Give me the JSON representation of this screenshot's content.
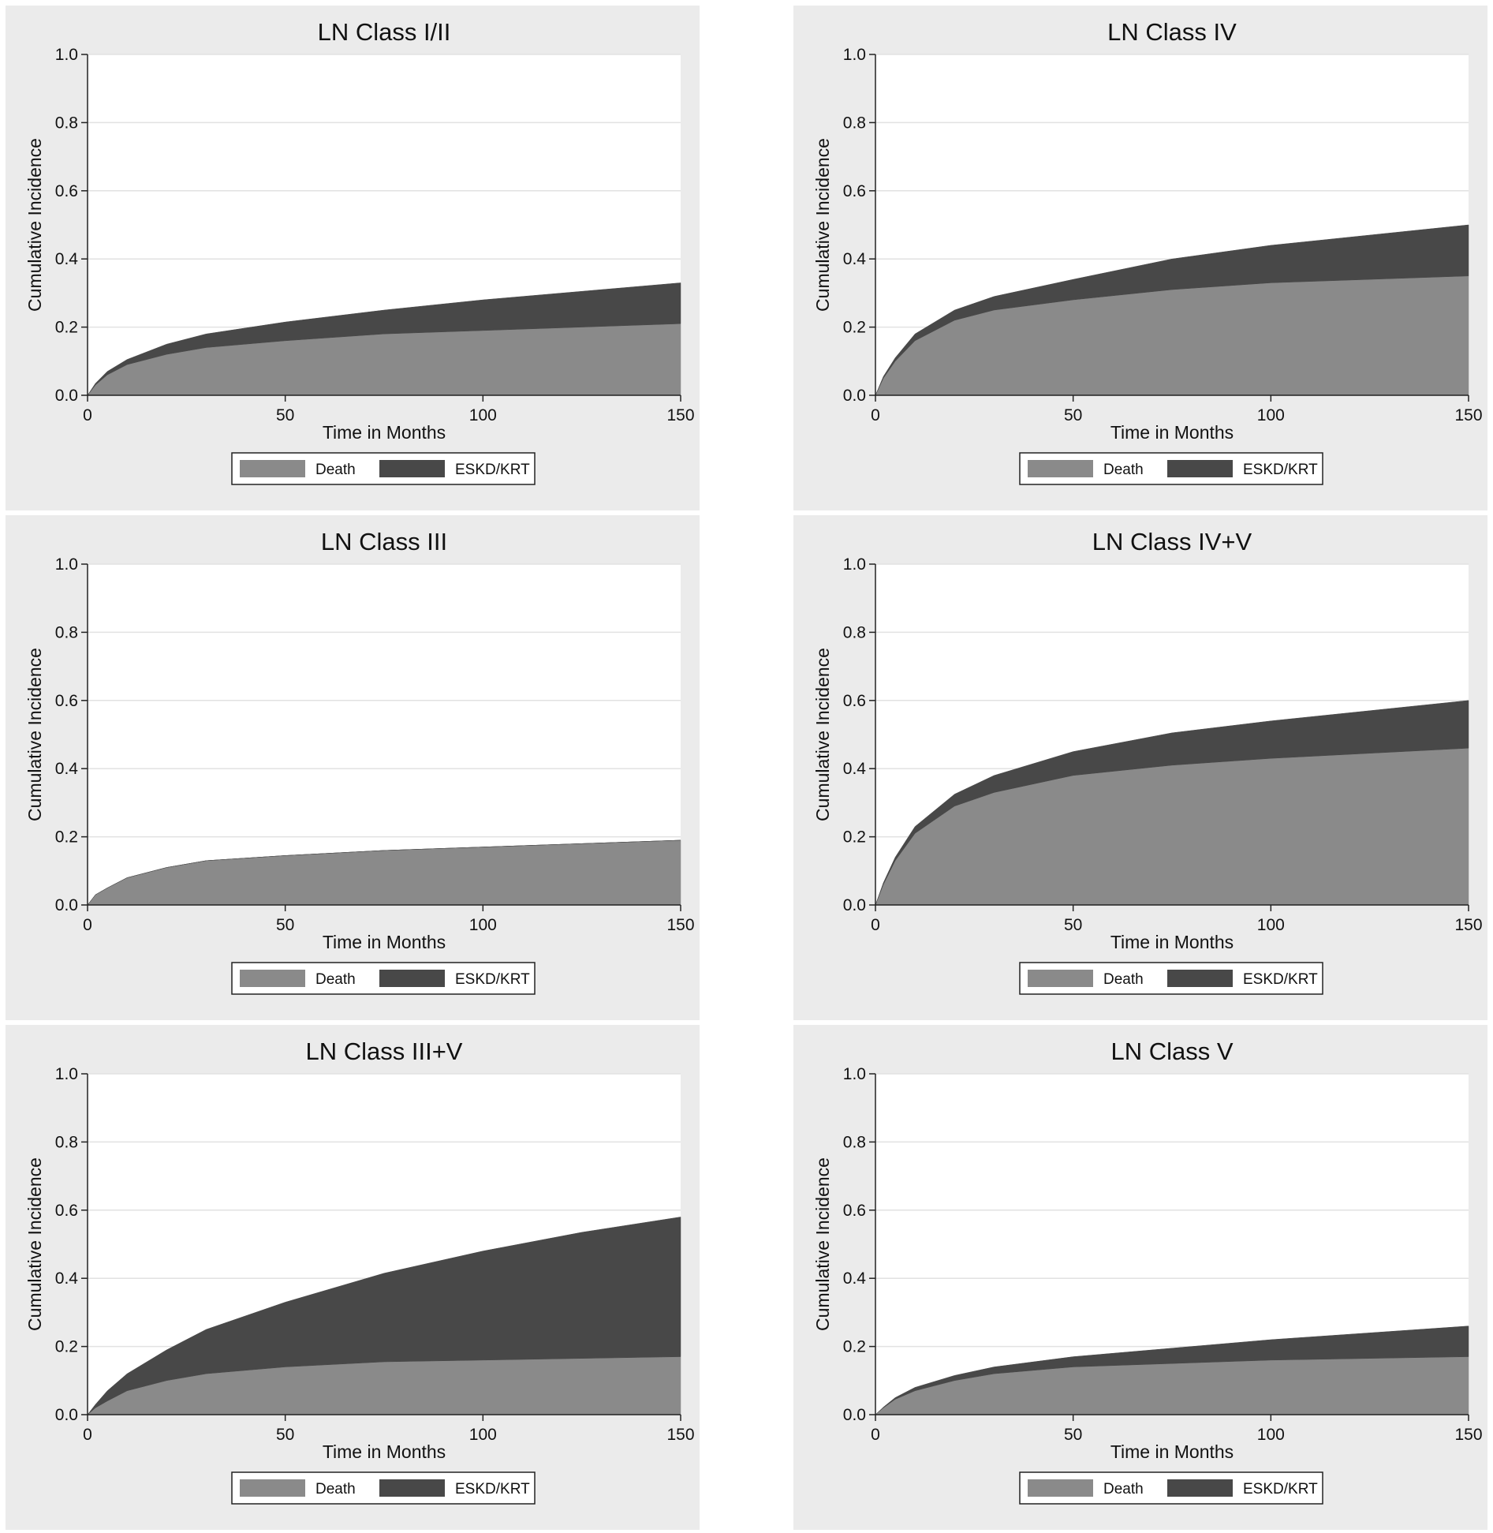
{
  "chart_data": [
    {
      "type": "area",
      "title": "LN Class I/II",
      "xlabel": "Time in Months",
      "ylabel": "Cumulative Incidence",
      "xlim": [
        0,
        150
      ],
      "ylim": [
        0,
        1
      ],
      "xticks": [
        "0",
        "50",
        "100",
        "150"
      ],
      "yticks": [
        "0.0",
        "0.2",
        "0.4",
        "0.6",
        "0.8",
        "1.0"
      ],
      "stacked": true,
      "grid": true,
      "legend_position": "bottom",
      "x": [
        0,
        2,
        5,
        10,
        20,
        30,
        50,
        75,
        100,
        125,
        150
      ],
      "series": [
        {
          "name": "Death",
          "color": "#8a8a8a",
          "values": [
            0,
            0.03,
            0.06,
            0.09,
            0.12,
            0.14,
            0.16,
            0.18,
            0.19,
            0.2,
            0.21
          ]
        },
        {
          "name": "ESKD/KRT",
          "color": "#484848",
          "values": [
            0,
            0.005,
            0.01,
            0.015,
            0.03,
            0.04,
            0.055,
            0.07,
            0.09,
            0.105,
            0.12
          ]
        }
      ]
    },
    {
      "type": "area",
      "title": "LN Class IV",
      "xlabel": "Time in Months",
      "ylabel": "Cumulative Incidence",
      "xlim": [
        0,
        150
      ],
      "ylim": [
        0,
        1
      ],
      "xticks": [
        "0",
        "50",
        "100",
        "150"
      ],
      "yticks": [
        "0.0",
        "0.2",
        "0.4",
        "0.6",
        "0.8",
        "1.0"
      ],
      "stacked": true,
      "grid": true,
      "legend_position": "bottom",
      "x": [
        0,
        2,
        5,
        10,
        20,
        30,
        50,
        75,
        100,
        125,
        150
      ],
      "series": [
        {
          "name": "Death",
          "color": "#8a8a8a",
          "values": [
            0,
            0.05,
            0.1,
            0.16,
            0.22,
            0.25,
            0.28,
            0.31,
            0.33,
            0.34,
            0.35
          ]
        },
        {
          "name": "ESKD/KRT",
          "color": "#484848",
          "values": [
            0,
            0.005,
            0.01,
            0.02,
            0.03,
            0.04,
            0.06,
            0.09,
            0.11,
            0.13,
            0.15
          ]
        }
      ]
    },
    {
      "type": "area",
      "title": "LN Class III",
      "xlabel": "Time in Months",
      "ylabel": "Cumulative Incidence",
      "xlim": [
        0,
        150
      ],
      "ylim": [
        0,
        1
      ],
      "xticks": [
        "0",
        "50",
        "100",
        "150"
      ],
      "yticks": [
        "0.0",
        "0.2",
        "0.4",
        "0.6",
        "0.8",
        "1.0"
      ],
      "stacked": true,
      "grid": true,
      "legend_position": "bottom",
      "x": [
        0,
        2,
        5,
        10,
        20,
        30,
        50,
        75,
        100,
        125,
        150
      ],
      "series": [
        {
          "name": "Death",
          "color": "#8a8a8a",
          "values": [
            0,
            0.03,
            0.05,
            0.08,
            0.11,
            0.13,
            0.145,
            0.16,
            0.17,
            0.18,
            0.19
          ]
        },
        {
          "name": "ESKD/KRT",
          "color": "#484848",
          "values": [
            0,
            0,
            0,
            0,
            0,
            0,
            0,
            0,
            0,
            0,
            0
          ]
        }
      ]
    },
    {
      "type": "area",
      "title": "LN Class IV+V",
      "xlabel": "Time in Months",
      "ylabel": "Cumulative Incidence",
      "xlim": [
        0,
        150
      ],
      "ylim": [
        0,
        1
      ],
      "xticks": [
        "0",
        "50",
        "100",
        "150"
      ],
      "yticks": [
        "0.0",
        "0.2",
        "0.4",
        "0.6",
        "0.8",
        "1.0"
      ],
      "stacked": true,
      "grid": true,
      "legend_position": "bottom",
      "x": [
        0,
        2,
        5,
        10,
        20,
        30,
        50,
        75,
        100,
        125,
        150
      ],
      "series": [
        {
          "name": "Death",
          "color": "#8a8a8a",
          "values": [
            0,
            0.06,
            0.13,
            0.21,
            0.29,
            0.33,
            0.38,
            0.41,
            0.43,
            0.445,
            0.46
          ]
        },
        {
          "name": "ESKD/KRT",
          "color": "#484848",
          "values": [
            0,
            0.005,
            0.01,
            0.02,
            0.035,
            0.05,
            0.07,
            0.095,
            0.11,
            0.125,
            0.14
          ]
        }
      ]
    },
    {
      "type": "area",
      "title": "LN Class III+V",
      "xlabel": "Time in Months",
      "ylabel": "Cumulative Incidence",
      "xlim": [
        0,
        150
      ],
      "ylim": [
        0,
        1
      ],
      "xticks": [
        "0",
        "50",
        "100",
        "150"
      ],
      "yticks": [
        "0.0",
        "0.2",
        "0.4",
        "0.6",
        "0.8",
        "1.0"
      ],
      "stacked": true,
      "grid": true,
      "legend_position": "bottom",
      "x": [
        0,
        2,
        5,
        10,
        20,
        30,
        50,
        75,
        100,
        125,
        150
      ],
      "series": [
        {
          "name": "Death",
          "color": "#8a8a8a",
          "values": [
            0,
            0.02,
            0.04,
            0.07,
            0.1,
            0.12,
            0.14,
            0.155,
            0.16,
            0.165,
            0.17
          ]
        },
        {
          "name": "ESKD/KRT",
          "color": "#484848",
          "values": [
            0,
            0.01,
            0.03,
            0.05,
            0.09,
            0.13,
            0.19,
            0.26,
            0.32,
            0.37,
            0.41
          ]
        }
      ]
    },
    {
      "type": "area",
      "title": "LN Class V",
      "xlabel": "Time in Months",
      "ylabel": "Cumulative Incidence",
      "xlim": [
        0,
        150
      ],
      "ylim": [
        0,
        1
      ],
      "xticks": [
        "0",
        "50",
        "100",
        "150"
      ],
      "yticks": [
        "0.0",
        "0.2",
        "0.4",
        "0.6",
        "0.8",
        "1.0"
      ],
      "stacked": true,
      "grid": true,
      "legend_position": "bottom",
      "x": [
        0,
        2,
        5,
        10,
        20,
        30,
        50,
        75,
        100,
        125,
        150
      ],
      "series": [
        {
          "name": "Death",
          "color": "#8a8a8a",
          "values": [
            0,
            0.02,
            0.045,
            0.07,
            0.1,
            0.12,
            0.14,
            0.15,
            0.16,
            0.165,
            0.17
          ]
        },
        {
          "name": "ESKD/KRT",
          "color": "#484848",
          "values": [
            0,
            0.002,
            0.005,
            0.01,
            0.015,
            0.02,
            0.03,
            0.045,
            0.06,
            0.075,
            0.09
          ]
        }
      ]
    }
  ]
}
